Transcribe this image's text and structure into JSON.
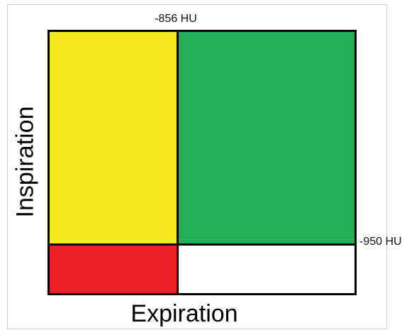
{
  "colors": {
    "top_left": "#f5ea1e",
    "top_right": "#24ae56",
    "bottom_left": "#ec1f26",
    "bottom_right": "#ffffff",
    "divider": "#000000"
  },
  "labels": {
    "top_threshold": "-856 HU",
    "right_threshold": "-950 HU",
    "x_axis": "Expiration",
    "y_axis": "Inspiration"
  }
}
